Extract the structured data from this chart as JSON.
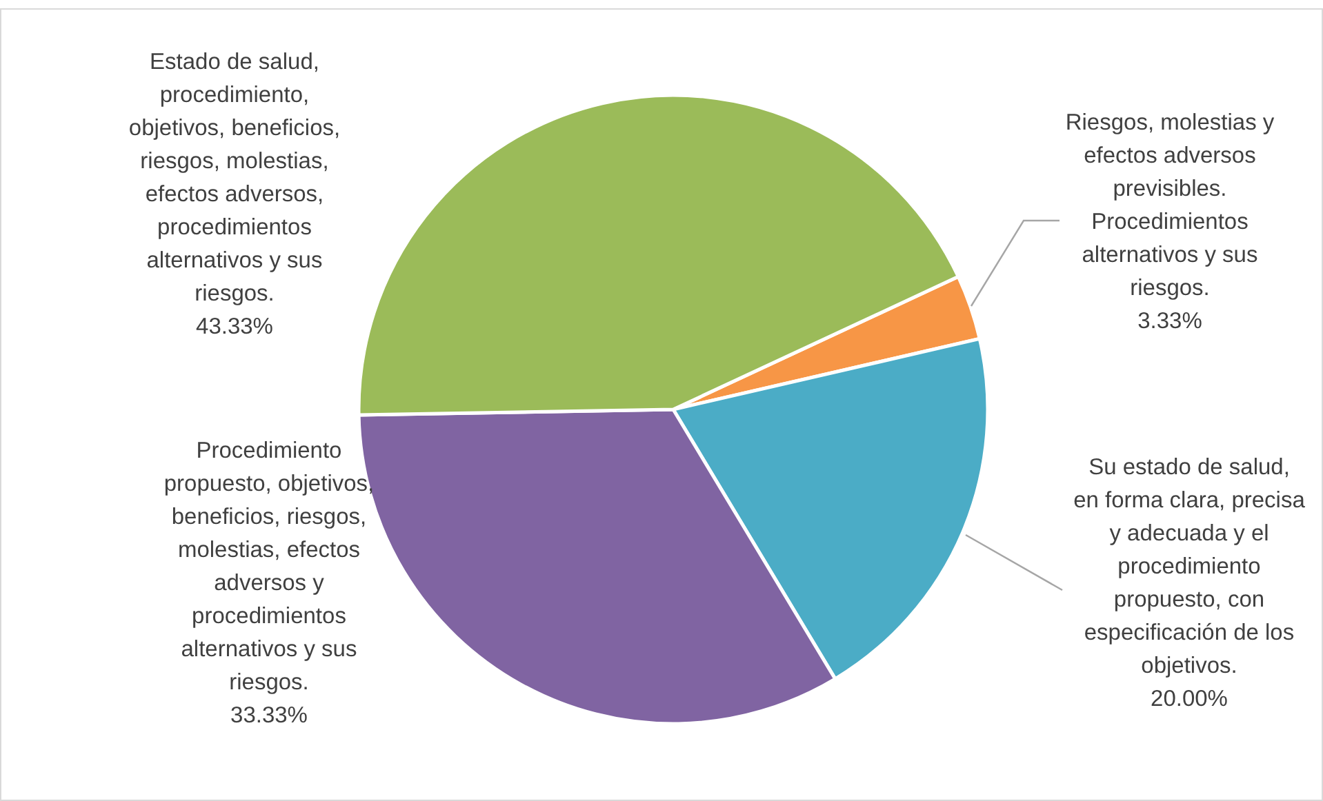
{
  "chart_data": {
    "type": "pie",
    "categories": [
      "Riesgos, molestias y efectos adversos previsibles. Procedimientos alternativos y sus riesgos.",
      "Su estado de salud, en forma clara, precisa y adecuada y el procedimiento propuesto, con especificación de los objetivos.",
      "Procedimiento propuesto, objetivos, beneficios, riesgos, molestias, efectos adversos y procedimientos alternativos y sus riesgos.",
      "Estado de salud, procedimiento, objetivos, beneficios, riesgos, molestias, efectos adversos, procedimientos alternativos y sus riesgos."
    ],
    "values": [
      3.33,
      20,
      33.33,
      43.33
    ],
    "colors": [
      "#f79646",
      "#4bacc6",
      "#8064a2",
      "#9bbb59"
    ],
    "value_labels": [
      "3.33%",
      "20.00%",
      "33.33%",
      "43.33%"
    ]
  }
}
